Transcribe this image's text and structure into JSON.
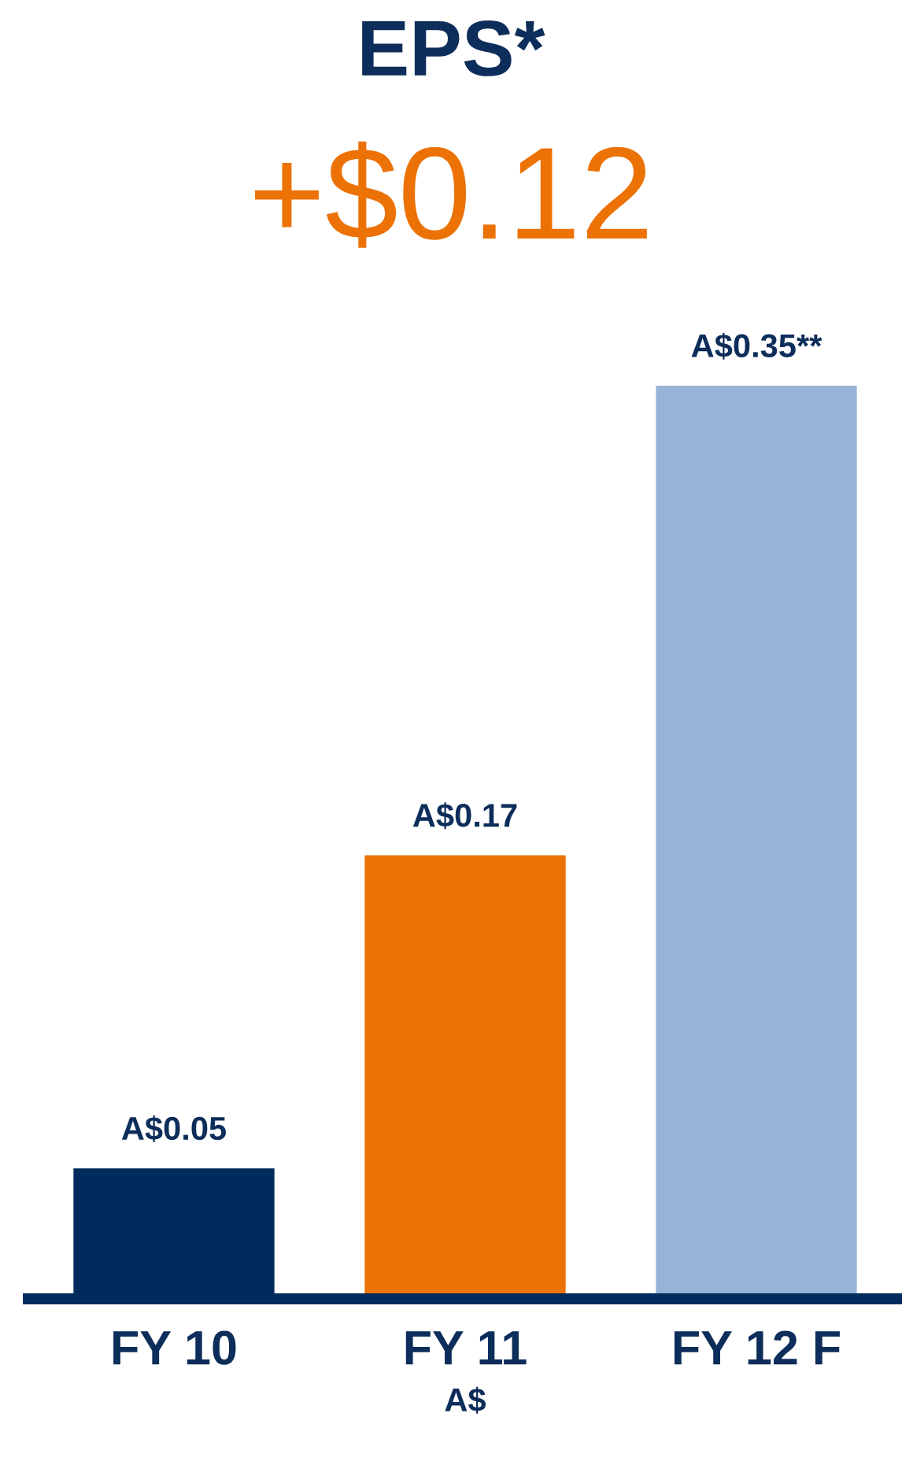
{
  "chart_data": {
    "type": "bar",
    "title": "EPS*",
    "subtitle": "+$0.12",
    "xlabel": "A$",
    "categories": [
      "FY 10",
      "FY 11",
      "FY 12 F"
    ],
    "values": [
      0.05,
      0.17,
      0.35
    ],
    "colors": [
      "#002b5c",
      "#ec7206",
      "#97b3d8"
    ],
    "value_labels": [
      "A$0.05",
      "A$0.17",
      "A$0.35**"
    ],
    "grid": false,
    "legend": false
  }
}
